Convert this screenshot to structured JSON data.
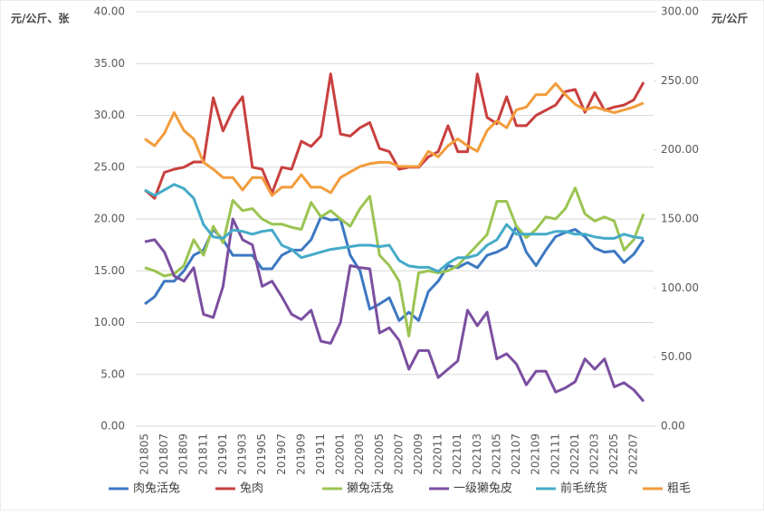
{
  "chart_data": {
    "type": "line",
    "y_label": "元/公斤、张",
    "y2_label": "元/公斤",
    "categories": [
      "201805",
      null,
      "201807",
      null,
      "201809",
      null,
      "201811",
      null,
      "201901",
      null,
      "201903",
      null,
      "201905",
      null,
      "201907",
      null,
      "201909",
      null,
      "201911",
      null,
      "202001",
      null,
      "202003",
      null,
      "202005",
      null,
      "202007",
      null,
      "202009",
      null,
      "202011",
      null,
      "202101",
      null,
      "202103",
      null,
      "202105",
      null,
      "202107",
      null,
      "202109",
      null,
      "202111",
      null,
      "202201",
      null,
      "202203",
      null,
      "202205",
      null,
      "202207",
      null
    ],
    "series": [
      {
        "name": "肉兔活兔",
        "color": "#3d78c2",
        "values": [
          11.8,
          12.5,
          14,
          14,
          15,
          16.5,
          17,
          19,
          18,
          16.5,
          16.5,
          16.5,
          15.2,
          15.2,
          16.5,
          17,
          17,
          18,
          20.2,
          19.9,
          20,
          16.5,
          15,
          11.3,
          11.8,
          12.4,
          10.2,
          11,
          10.2,
          13,
          14,
          15.5,
          15.3,
          15.8,
          15.3,
          16.5,
          16.8,
          17.3,
          19.3,
          16.8,
          15.5,
          17,
          18.3,
          18.7,
          19,
          18.3,
          17.2,
          16.8,
          16.9,
          15.8,
          16.6,
          18
        ]
      },
      {
        "name": "兔肉",
        "color": "#c8403f",
        "values": [
          22.8,
          22,
          24.5,
          24.8,
          25,
          25.5,
          25.5,
          31.7,
          28.5,
          30.5,
          31.8,
          25,
          24.8,
          22.5,
          25,
          24.8,
          27.5,
          27,
          28,
          34,
          28.2,
          28,
          28.8,
          29.3,
          26.8,
          26.5,
          24.8,
          25,
          25,
          26,
          26.5,
          29,
          26.5,
          26.5,
          34,
          29.8,
          29.2,
          31.8,
          29,
          29,
          30,
          30.5,
          31,
          32.3,
          32.5,
          30.3,
          32.2,
          30.5,
          30.8,
          31,
          31.5,
          33.2
        ]
      },
      {
        "name": "獭兔活兔",
        "color": "#9bc452",
        "values": [
          15.3,
          15,
          14.5,
          14.7,
          15.5,
          18,
          16.5,
          19.3,
          17.7,
          21.8,
          20.8,
          21,
          20,
          19.5,
          19.5,
          19.2,
          19,
          21.6,
          20.2,
          20.8,
          20,
          19.3,
          21,
          22.2,
          16.5,
          15.5,
          14,
          8.7,
          14.8,
          15,
          14.8,
          15,
          15.5,
          16.5,
          17.5,
          18.5,
          21.7,
          21.7,
          19.3,
          18.2,
          19,
          20.2,
          20,
          21,
          23,
          20.5,
          19.8,
          20.2,
          19.8,
          17,
          18,
          20.5
        ]
      },
      {
        "name": "一级獭兔皮",
        "color": "#7b4fa0",
        "values": [
          17.8,
          18,
          16.8,
          14.5,
          14,
          15.3,
          10.8,
          10.5,
          13.5,
          20,
          18,
          17.5,
          13.5,
          14,
          12.5,
          10.8,
          10.3,
          11.2,
          8.2,
          8,
          10,
          15.5,
          15.3,
          15.2,
          9,
          9.5,
          8.3,
          5.5,
          7.3,
          7.3,
          4.7,
          5.5,
          6.3,
          11.2,
          9.7,
          11,
          6.5,
          7,
          6,
          4,
          5.3,
          5.3,
          3.3,
          3.7,
          4.3,
          6.5,
          5.5,
          6.5,
          3.8,
          4.2,
          3.5,
          2.4
        ]
      },
      {
        "name": "前毛统货",
        "color": "#45abc8",
        "axis": "y2",
        "values": [
          171,
          167,
          171,
          175,
          172,
          165,
          146,
          137,
          136,
          142,
          141,
          139,
          141,
          142,
          131,
          128,
          122,
          124,
          126,
          128,
          129,
          130,
          131,
          131,
          130,
          131,
          120,
          116,
          115,
          115,
          112,
          118,
          122,
          122,
          124,
          131,
          135,
          146,
          139,
          139,
          139,
          139,
          141,
          141,
          139,
          139,
          137,
          136,
          136,
          139,
          137,
          136
        ]
      },
      {
        "name": "粗毛",
        "color": "#f29c3c",
        "axis": "y2",
        "values": [
          208,
          203,
          212,
          227,
          214,
          208,
          191,
          186,
          180,
          180,
          171,
          180,
          180,
          167,
          173,
          173,
          182,
          173,
          173,
          169,
          180,
          184,
          188,
          190,
          191,
          191,
          188,
          188,
          188,
          199,
          195,
          203,
          208,
          203,
          199,
          214,
          221,
          216,
          229,
          231,
          240,
          240,
          248,
          240,
          233,
          229,
          231,
          229,
          227,
          229,
          231,
          234
        ]
      }
    ],
    "ylim": [
      0,
      40
    ],
    "yticks": [
      {
        "value": 0,
        "label": "0.00"
      },
      {
        "value": 5,
        "label": "5.00"
      },
      {
        "value": 10,
        "label": "10.00"
      },
      {
        "value": 15,
        "label": "15.00"
      },
      {
        "value": 20,
        "label": "20.00"
      },
      {
        "value": 25,
        "label": "25.00"
      },
      {
        "value": 30,
        "label": "30.00"
      },
      {
        "value": 35,
        "label": "35.00"
      },
      {
        "value": 40,
        "label": "40.00"
      }
    ],
    "y2lim": [
      0,
      300
    ],
    "y2ticks": [
      {
        "value": 0,
        "label": "0.00"
      },
      {
        "value": 50,
        "label": "50.00"
      },
      {
        "value": 100,
        "label": "100.00"
      },
      {
        "value": 150,
        "label": "150.00"
      },
      {
        "value": 200,
        "label": "200.00"
      },
      {
        "value": 250,
        "label": "250.00"
      },
      {
        "value": 300,
        "label": "300.00"
      }
    ],
    "grid": true,
    "legend": "bottom"
  }
}
